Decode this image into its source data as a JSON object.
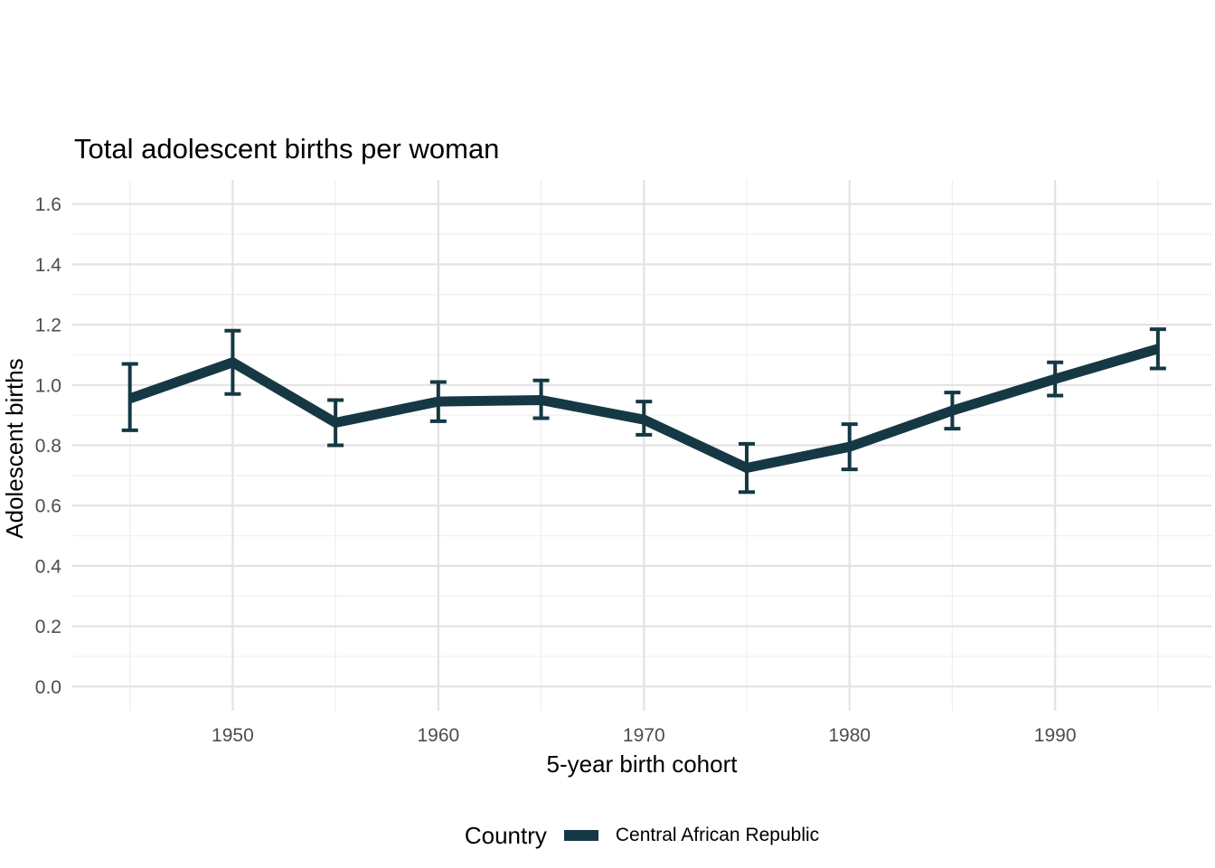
{
  "chart_data": {
    "type": "line",
    "title": "Total adolescent births per woman",
    "xlabel": "5-year birth cohort",
    "ylabel": "Adolescent births",
    "legend_title": "Country",
    "legend_position": "bottom",
    "grid": "major+minor",
    "x_ticks": [
      "1950",
      "1960",
      "1970",
      "1980",
      "1990"
    ],
    "y_ticks": [
      "0.0",
      "0.2",
      "0.4",
      "0.6",
      "0.8",
      "1.0",
      "1.2",
      "1.4",
      "1.6"
    ],
    "xlim": [
      1942.2,
      1997.6
    ],
    "ylim": [
      -0.08,
      1.68
    ],
    "series": [
      {
        "name": "Central African Republic",
        "color": "#153844",
        "x": [
          1945,
          1950,
          1955,
          1960,
          1965,
          1970,
          1975,
          1980,
          1985,
          1990,
          1995
        ],
        "values": [
          0.955,
          1.075,
          0.875,
          0.945,
          0.95,
          0.885,
          0.725,
          0.795,
          0.915,
          1.02,
          1.12
        ],
        "ci_lower": [
          0.85,
          0.97,
          0.8,
          0.88,
          0.89,
          0.835,
          0.645,
          0.72,
          0.855,
          0.965,
          1.055
        ],
        "ci_upper": [
          1.07,
          1.18,
          0.95,
          1.01,
          1.015,
          0.945,
          0.805,
          0.87,
          0.975,
          1.075,
          1.185
        ]
      }
    ]
  },
  "colors": {
    "background": "#ffffff",
    "grid_major": "#e3e3e3",
    "grid_minor": "#efefef",
    "tick_label": "#4d4d4d",
    "text": "#000000"
  }
}
